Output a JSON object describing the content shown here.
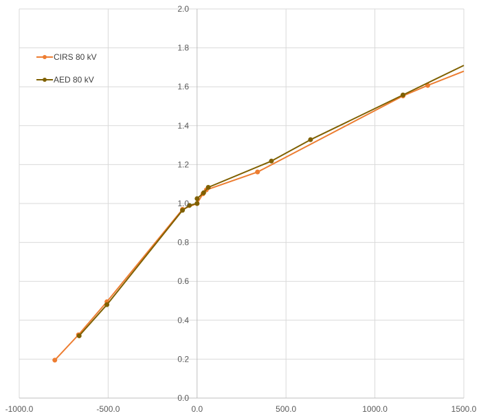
{
  "chart_data": {
    "type": "line",
    "title": "",
    "xlabel": "",
    "ylabel": "",
    "xlim": [
      -1000,
      1500
    ],
    "ylim": [
      0,
      2.0
    ],
    "x_ticks": [
      -1000,
      -500,
      0,
      500,
      1000,
      1500
    ],
    "x_tick_labels": [
      "-1000.0",
      "-500.0",
      "0.0",
      "500.0",
      "1000.0",
      "1500.0"
    ],
    "y_ticks": [
      0,
      0.2,
      0.4,
      0.6,
      0.8,
      1.0,
      1.2,
      1.4,
      1.6,
      1.8,
      2.0
    ],
    "y_tick_labels": [
      "0.0",
      "0.2",
      "0.4",
      "0.6",
      "0.8",
      "1.0",
      "1.2",
      "1.4",
      "1.6",
      "1.8",
      "2.0"
    ],
    "grid": "vertical and horizontal major gridlines",
    "legend_position": "top-left",
    "series": [
      {
        "name": "CIRS 80 kV",
        "color": "#ED7D31",
        "points": [
          [
            -800,
            0.195
          ],
          [
            -667,
            0.325
          ],
          [
            -507,
            0.495
          ],
          [
            -82,
            0.97
          ],
          [
            0,
            1.0
          ],
          [
            33,
            1.05
          ],
          [
            52,
            1.07
          ],
          [
            340,
            1.162
          ],
          [
            1158,
            1.553
          ],
          [
            1297,
            1.607
          ],
          [
            1500,
            1.68
          ]
        ]
      },
      {
        "name": "AED 80 kV",
        "color": "#7F6000",
        "points": [
          [
            -663,
            0.32
          ],
          [
            -507,
            0.48
          ],
          [
            -82,
            0.965
          ],
          [
            -43,
            0.99
          ],
          [
            0,
            1.0
          ],
          [
            0,
            1.025
          ],
          [
            37,
            1.055
          ],
          [
            63,
            1.083
          ],
          [
            418,
            1.218
          ],
          [
            638,
            1.328
          ],
          [
            1158,
            1.558
          ],
          [
            1500,
            1.71
          ]
        ]
      }
    ]
  }
}
